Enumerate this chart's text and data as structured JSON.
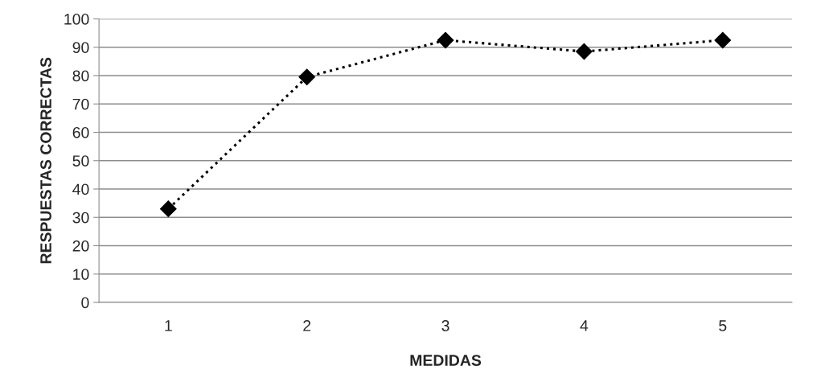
{
  "chart_data": {
    "type": "line",
    "xlabel": "MEDIDAS",
    "ylabel": "RESPUESTAS CORRECTAS",
    "categories": [
      "1",
      "2",
      "3",
      "4",
      "5"
    ],
    "series": [
      {
        "color": "#000000",
        "values": [
          33,
          79.5,
          92.5,
          88.5,
          92.5
        ]
      }
    ],
    "ylim": [
      0,
      100
    ],
    "yticks": [
      0,
      10,
      20,
      30,
      40,
      50,
      60,
      70,
      80,
      90,
      100
    ],
    "grid": "y",
    "marker": "diamond",
    "line_style": "dotted",
    "legend": false
  }
}
